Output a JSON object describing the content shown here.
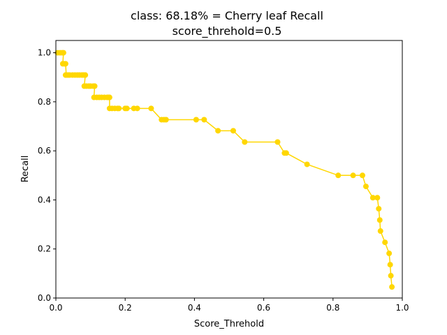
{
  "chart_data": {
    "type": "line",
    "title": "class: 68.18% = Cherry leaf Recall",
    "subtitle": "score_threhold=0.5",
    "xlabel": "Score_Threhold",
    "ylabel": "Recall",
    "xlim": [
      0.0,
      1.0
    ],
    "ylim": [
      0.0,
      1.05
    ],
    "xticks": [
      "0.0",
      "0.2",
      "0.4",
      "0.6",
      "0.8",
      "1.0"
    ],
    "yticks": [
      "0.0",
      "0.2",
      "0.4",
      "0.6",
      "0.8",
      "1.0"
    ],
    "grid": false,
    "legend": false,
    "series": [
      {
        "color": "#ffd700",
        "marker": "circle",
        "x": [
          0.005,
          0.012,
          0.018,
          0.022,
          0.02,
          0.025,
          0.028,
          0.03,
          0.028,
          0.035,
          0.04,
          0.048,
          0.055,
          0.062,
          0.068,
          0.075,
          0.08,
          0.085,
          0.082,
          0.088,
          0.095,
          0.1,
          0.108,
          0.112,
          0.11,
          0.118,
          0.125,
          0.132,
          0.14,
          0.148,
          0.152,
          0.155,
          0.155,
          0.162,
          0.17,
          0.178,
          0.182,
          0.2,
          0.205,
          0.225,
          0.235,
          0.275,
          0.305,
          0.312,
          0.318,
          0.405,
          0.428,
          0.468,
          0.512,
          0.545,
          0.64,
          0.66,
          0.665,
          0.725,
          0.815,
          0.858,
          0.885,
          0.895,
          0.915,
          0.928,
          0.932,
          0.935,
          0.937,
          0.95,
          0.962,
          0.965,
          0.967,
          0.97
        ],
        "y": [
          1.0,
          1.0,
          1.0,
          1.0,
          0.955,
          0.955,
          0.955,
          0.909,
          0.909,
          0.909,
          0.909,
          0.909,
          0.909,
          0.909,
          0.909,
          0.909,
          0.909,
          0.909,
          0.864,
          0.864,
          0.864,
          0.864,
          0.864,
          0.864,
          0.818,
          0.818,
          0.818,
          0.818,
          0.818,
          0.818,
          0.818,
          0.818,
          0.773,
          0.773,
          0.773,
          0.773,
          0.773,
          0.773,
          0.773,
          0.773,
          0.773,
          0.773,
          0.727,
          0.727,
          0.727,
          0.727,
          0.727,
          0.682,
          0.682,
          0.636,
          0.636,
          0.591,
          0.591,
          0.545,
          0.5,
          0.5,
          0.5,
          0.455,
          0.409,
          0.409,
          0.364,
          0.318,
          0.273,
          0.227,
          0.182,
          0.136,
          0.091,
          0.045
        ]
      }
    ]
  }
}
